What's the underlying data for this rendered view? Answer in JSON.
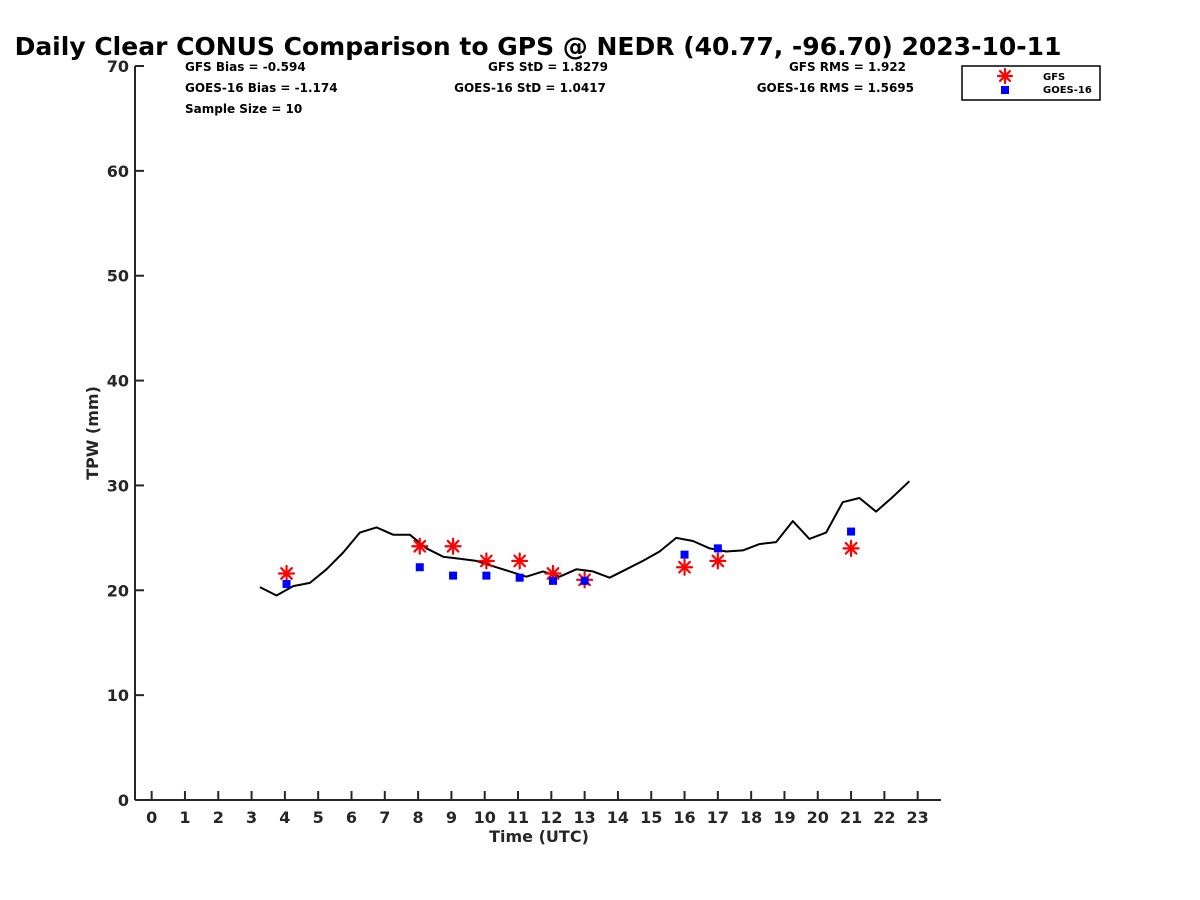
{
  "chart_data": {
    "type": "scatter",
    "title": "Daily Clear CONUS Comparison to GPS @ NEDR (40.77, -96.70) 2023-10-11",
    "xlabel": "Time (UTC)",
    "ylabel": "TPW (mm)",
    "xlim": [
      -0.5,
      23.7
    ],
    "ylim": [
      0,
      70
    ],
    "xticks": [
      0,
      1,
      2,
      3,
      4,
      5,
      6,
      7,
      8,
      9,
      10,
      11,
      12,
      13,
      14,
      15,
      16,
      17,
      18,
      19,
      20,
      21,
      22,
      23
    ],
    "yticks": [
      0,
      10,
      20,
      30,
      40,
      50,
      60,
      70
    ],
    "grid": false,
    "legend_position": "top-right",
    "stats": [
      [
        "GFS Bias = -0.594",
        "GFS StD = 1.8279",
        "GFS RMS = 1.922"
      ],
      [
        "GOES-16 Bias = -1.174",
        "GOES-16 StD = 1.0417",
        "GOES-16 RMS = 1.5695"
      ],
      [
        "Sample Size = 10"
      ]
    ],
    "series": [
      {
        "name": "GFS",
        "marker": "asterisk",
        "color": "#ff0000",
        "points": [
          [
            4.05,
            21.6
          ],
          [
            8.05,
            24.2
          ],
          [
            9.05,
            24.2
          ],
          [
            10.05,
            22.8
          ],
          [
            11.05,
            22.8
          ],
          [
            12.05,
            21.6
          ],
          [
            13.0,
            21.0
          ],
          [
            16.0,
            22.2
          ],
          [
            17.0,
            22.8
          ],
          [
            21.0,
            24.0
          ]
        ]
      },
      {
        "name": "GOES-16",
        "marker": "square",
        "color": "#0000ff",
        "points": [
          [
            4.05,
            20.6
          ],
          [
            8.05,
            22.2
          ],
          [
            9.05,
            21.4
          ],
          [
            10.05,
            21.4
          ],
          [
            11.05,
            21.2
          ],
          [
            12.05,
            20.9
          ],
          [
            13.0,
            20.9
          ],
          [
            16.0,
            23.4
          ],
          [
            17.0,
            24.0
          ],
          [
            21.0,
            25.6
          ]
        ]
      },
      {
        "marker": "line",
        "color": "#000000",
        "points": [
          [
            3.25,
            20.3
          ],
          [
            3.75,
            19.5
          ],
          [
            4.25,
            20.4
          ],
          [
            4.75,
            20.7
          ],
          [
            5.25,
            22.0
          ],
          [
            5.75,
            23.6
          ],
          [
            6.25,
            25.5
          ],
          [
            6.75,
            26.0
          ],
          [
            7.25,
            25.3
          ],
          [
            7.75,
            25.3
          ],
          [
            8.25,
            24.0
          ],
          [
            8.75,
            23.2
          ],
          [
            9.25,
            23.0
          ],
          [
            9.75,
            22.8
          ],
          [
            10.25,
            22.3
          ],
          [
            10.75,
            21.8
          ],
          [
            11.25,
            21.3
          ],
          [
            11.75,
            21.8
          ],
          [
            12.25,
            21.3
          ],
          [
            12.75,
            22.0
          ],
          [
            13.25,
            21.8
          ],
          [
            13.75,
            21.2
          ],
          [
            14.25,
            22.0
          ],
          [
            14.75,
            22.8
          ],
          [
            15.25,
            23.7
          ],
          [
            15.75,
            25.0
          ],
          [
            16.25,
            24.7
          ],
          [
            16.75,
            24.0
          ],
          [
            17.25,
            23.7
          ],
          [
            17.75,
            23.8
          ],
          [
            18.25,
            24.4
          ],
          [
            18.75,
            24.6
          ],
          [
            19.25,
            26.6
          ],
          [
            19.75,
            24.9
          ],
          [
            20.25,
            25.5
          ],
          [
            20.75,
            28.4
          ],
          [
            21.25,
            28.8
          ],
          [
            21.75,
            27.5
          ],
          [
            22.25,
            28.9
          ],
          [
            22.75,
            30.4
          ]
        ]
      }
    ]
  }
}
